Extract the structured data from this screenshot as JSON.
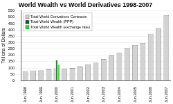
{
  "chart_data": {
    "type": "bar",
    "title": "World Wealth vs World Derivatives 1998-2007",
    "y_label": "Trillions of Dollars",
    "categories": [
      "Jun.1998",
      null,
      "Jun.1999",
      null,
      "Jun.2000",
      null,
      "Jun.2001",
      null,
      "Jun.2002",
      null,
      "Jun.2003",
      null,
      "Jun.2004",
      null,
      "Jun.2005",
      null,
      "Jun.2006",
      null,
      "Jun.2007"
    ],
    "series": [
      {
        "name": "Total World Derivatives Contracts",
        "color": "#d3d3d3",
        "values": [
          72,
          80,
          81,
          88,
          94,
          95,
          100,
          111,
          128,
          142,
          170,
          197,
          220,
          258,
          282,
          298,
          370,
          415,
          516
        ]
      },
      {
        "name": "Total World Wealth (PPP)",
        "color": "#006400",
        "values": [
          null,
          null,
          null,
          null,
          160,
          null,
          null,
          null,
          null,
          null,
          null,
          null,
          null,
          null,
          null,
          null,
          null,
          null,
          null
        ]
      },
      {
        "name": "Total World Wealth (exchange rate)",
        "color": "#22dd22",
        "values": [
          null,
          null,
          null,
          null,
          125,
          null,
          null,
          null,
          null,
          null,
          null,
          null,
          null,
          null,
          null,
          null,
          null,
          null,
          null
        ]
      }
    ],
    "ylim": [
      0,
      550
    ],
    "yticks": [
      0,
      50,
      100,
      150,
      200,
      250,
      300,
      350,
      400,
      450,
      500,
      550
    ],
    "grid": true,
    "legend": "upper left"
  }
}
